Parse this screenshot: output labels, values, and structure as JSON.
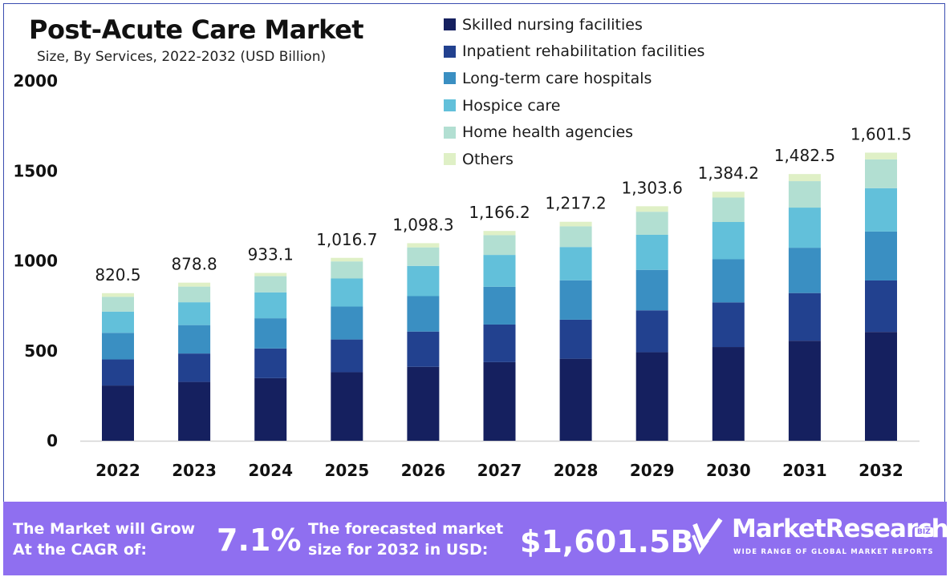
{
  "header": {
    "title": "Post-Acute Care Market",
    "subtitle": "Size, By Services, 2022-2032 (USD Billion)"
  },
  "colors": {
    "skilled_nursing": "#15205f",
    "inpatient_rehab": "#22418f",
    "long_term_care": "#3a8fc2",
    "hospice": "#62c0da",
    "home_health": "#b2dfd2",
    "others": "#dff0c6",
    "footer_bg": "#8f6ff0"
  },
  "chart_data": {
    "type": "bar",
    "stacked": true,
    "categories": [
      "2022",
      "2023",
      "2024",
      "2025",
      "2026",
      "2027",
      "2028",
      "2029",
      "2030",
      "2031",
      "2032"
    ],
    "totals": [
      820.5,
      878.8,
      933.1,
      1016.7,
      1098.3,
      1166.2,
      1217.2,
      1303.6,
      1384.2,
      1482.5,
      1601.5
    ],
    "total_labels": [
      "820.5",
      "878.8",
      "933.1",
      "1,016.7",
      "1,098.3",
      "1,166.2",
      "1,217.2",
      "1,303.6",
      "1,384.2",
      "1,482.5",
      "1,601.5"
    ],
    "series": [
      {
        "name": "Skilled nursing facilities",
        "values": [
          307,
          327,
          348,
          381,
          411,
          437,
          456,
          492,
          521,
          556,
          605
        ]
      },
      {
        "name": "Inpatient rehabilitation facilities",
        "values": [
          145,
          158,
          165,
          182,
          196,
          209,
          217,
          233,
          248,
          265,
          286
        ]
      },
      {
        "name": "Long-term care hospitals",
        "values": [
          148,
          158,
          168,
          183,
          197,
          210,
          219,
          225,
          240,
          252,
          272
        ]
      },
      {
        "name": "Hospice care",
        "values": [
          118,
          127,
          144,
          156,
          168,
          177,
          185,
          195,
          207,
          223,
          241
        ]
      },
      {
        "name": "Home health agencies",
        "values": [
          82,
          87,
          90,
          95,
          103,
          110,
          115,
          128,
          136,
          147,
          160
        ]
      },
      {
        "name": "Others",
        "values": [
          20.5,
          21.8,
          18.1,
          19.7,
          23.3,
          23.2,
          25.2,
          30.6,
          32.2,
          39.5,
          37.5
        ]
      }
    ],
    "yticks": [
      "0",
      "500",
      "1000",
      "1500",
      "2000"
    ],
    "ylim": [
      0,
      2000
    ],
    "grid": false,
    "legend_position": "top-right"
  },
  "footer": {
    "cagr_label_line1": "The Market will Grow",
    "cagr_label_line2": "At the CAGR of:",
    "cagr_value": "7.1%",
    "forecast_label_line1": "The forecasted market",
    "forecast_label_line2": "size for 2032 in USD:",
    "forecast_value": "$1,601.5B",
    "brand_name": "MarketResearch",
    "brand_badge": "BIZ",
    "brand_tagline": "WIDE RANGE OF GLOBAL MARKET REPORTS"
  }
}
